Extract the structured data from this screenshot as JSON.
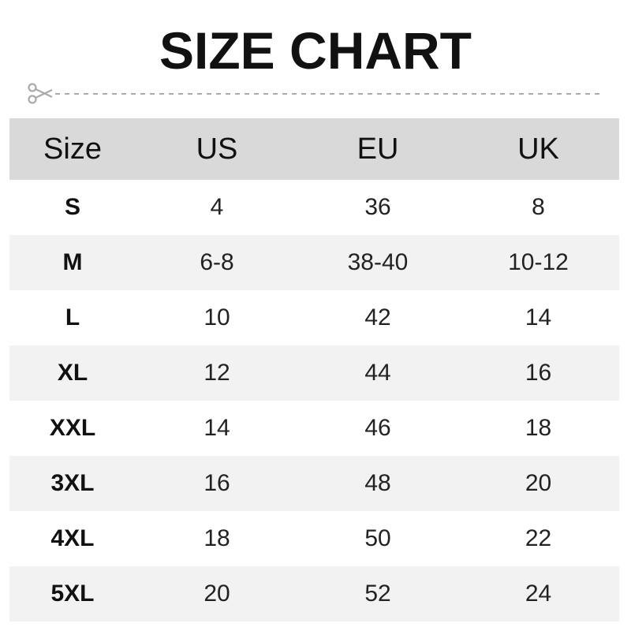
{
  "title": "SIZE CHART",
  "icons": {
    "cut": "scissors-icon"
  },
  "colors": {
    "header_bg": "#d9d9d9",
    "alt_row_bg": "#f2f2f2",
    "divider": "#aaaaaa"
  },
  "table": {
    "headers": [
      "Size",
      "US",
      "EU",
      "UK"
    ],
    "rows": [
      [
        "S",
        "4",
        "36",
        "8"
      ],
      [
        "M",
        "6-8",
        "38-40",
        "10-12"
      ],
      [
        "L",
        "10",
        "42",
        "14"
      ],
      [
        "XL",
        "12",
        "44",
        "16"
      ],
      [
        "XXL",
        "14",
        "46",
        "18"
      ],
      [
        "3XL",
        "16",
        "48",
        "20"
      ],
      [
        "4XL",
        "18",
        "50",
        "22"
      ],
      [
        "5XL",
        "20",
        "52",
        "24"
      ]
    ]
  }
}
